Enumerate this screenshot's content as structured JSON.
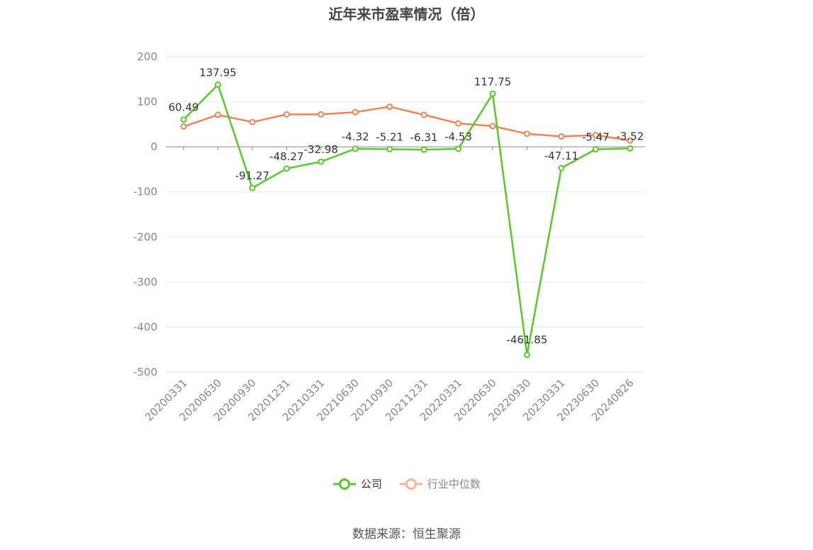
{
  "title": "近年来市盈率情况（倍）",
  "source_note": "数据来源：恒生聚源",
  "colors": {
    "company": "#5cc72c",
    "industry": "#f08454",
    "industry_legend": "#f7b49a",
    "grid": "#e3e6f0",
    "axis": "#888888"
  },
  "legend": [
    {
      "label": "公司",
      "color": "#5cc72c"
    },
    {
      "label": "行业中位数",
      "color": "#f7b49a"
    }
  ],
  "chart_data": {
    "type": "line",
    "title": "近年来市盈率情况（倍）",
    "categories": [
      "20200331",
      "20200630",
      "20200930",
      "20201231",
      "20210331",
      "20210630",
      "20210930",
      "20211231",
      "20220331",
      "20220630",
      "20220930",
      "20230331",
      "20230630",
      "20240826"
    ],
    "ylim": [
      -500,
      200
    ],
    "yticks": [
      200,
      100,
      0,
      -100,
      -200,
      -300,
      -400,
      -500
    ],
    "grid": true,
    "legend_position": "bottom",
    "series": [
      {
        "name": "公司",
        "values": [
          60.49,
          137.95,
          -91.27,
          -48.27,
          -32.98,
          -4.32,
          -5.21,
          -6.31,
          -4.53,
          117.75,
          -461.85,
          -47.11,
          -5.47,
          -3.52
        ],
        "labels": [
          "60.49",
          "137.95",
          "-91.27",
          "-48.27",
          "-32.98",
          "-4.32",
          "-5.21",
          "-6.31",
          "-4.53",
          "117.75",
          "-461.85",
          "-47.11",
          "-5.47",
          "-3.52"
        ]
      },
      {
        "name": "行业中位数",
        "values": [
          45,
          71,
          55,
          72,
          72,
          77,
          89,
          71,
          52,
          46,
          29,
          23,
          26,
          14
        ]
      }
    ]
  }
}
